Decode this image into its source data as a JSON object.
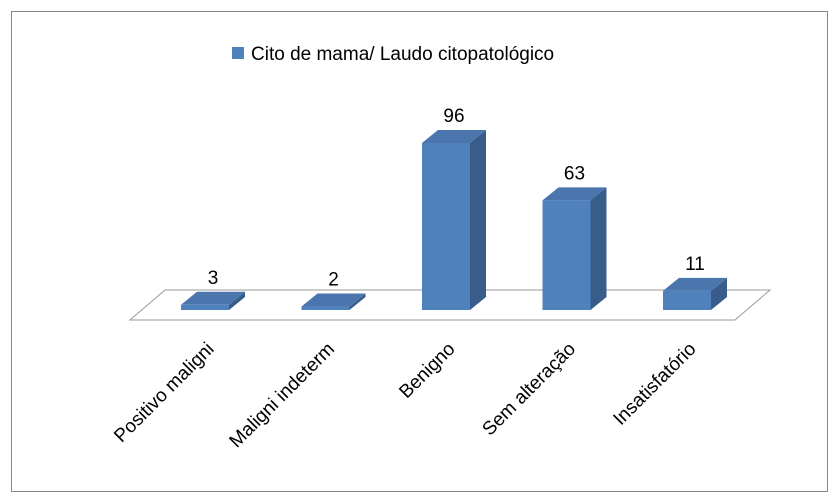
{
  "chart_data": {
    "type": "bar3d",
    "legend": "Cito de mama/ Laudo citopatológico",
    "series": [
      {
        "name": "Cito de mama/ Laudo citopatológico",
        "color": "#4f81bd",
        "values": [
          3,
          2,
          96,
          63,
          11
        ]
      }
    ],
    "categories": [
      "Positivo maligni",
      "Maligni indeterm",
      "Benigno",
      "Sem alteração",
      "Insatisfatório"
    ]
  }
}
